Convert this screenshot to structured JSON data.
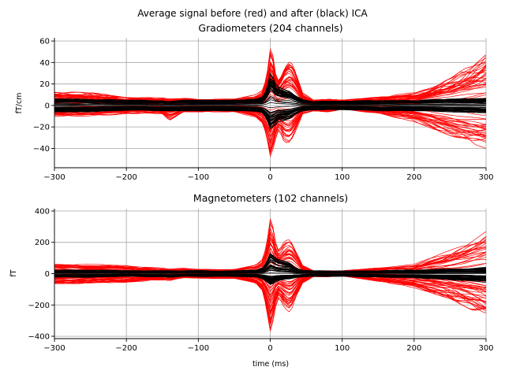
{
  "figure": {
    "suptitle": "Average signal before (red) and after (black) ICA",
    "colors": {
      "before": "#ff0000",
      "after": "#000000",
      "grid": "#b0b0b0"
    }
  },
  "chart_data": [
    {
      "type": "line",
      "title": "Gradiometers (204 channels)",
      "xlabel": "",
      "ylabel": "fT/cm",
      "xlim": [
        -300,
        300
      ],
      "ylim": [
        -58,
        63
      ],
      "xticks": [
        -300,
        -200,
        -100,
        0,
        100,
        200,
        300
      ],
      "xtick_labels": [
        "−300",
        "−200",
        "−100",
        "0",
        "100",
        "200",
        "300"
      ],
      "yticks": [
        -40,
        -20,
        0,
        20,
        40,
        60
      ],
      "ytick_labels": [
        "−40",
        "−20",
        "0",
        "20",
        "40",
        "60"
      ],
      "grid": true,
      "channels": 204,
      "series": [
        {
          "color": "#ff0000",
          "x": [
            -300,
            -250,
            -200,
            -150,
            -140,
            -120,
            -100,
            -50,
            -20,
            -10,
            -5,
            0,
            3,
            8,
            12,
            20,
            28,
            35,
            45,
            60,
            80,
            100,
            150,
            200,
            250,
            300
          ],
          "upper": [
            13,
            12,
            8,
            7,
            6,
            7,
            6,
            6,
            10,
            15,
            30,
            58,
            55,
            30,
            25,
            40,
            46,
            35,
            12,
            5,
            6,
            5,
            8,
            12,
            25,
            48
          ],
          "lower": [
            -10,
            -10,
            -8,
            -8,
            -14,
            -6,
            -6,
            -6,
            -12,
            -20,
            -35,
            -52,
            -45,
            -30,
            -22,
            -35,
            -36,
            -25,
            -8,
            -5,
            -6,
            -4,
            -8,
            -15,
            -28,
            -40
          ]
        },
        {
          "color": "#000000",
          "x": [
            -300,
            -250,
            -200,
            -150,
            -140,
            -120,
            -100,
            -50,
            -20,
            -10,
            -5,
            0,
            3,
            8,
            12,
            20,
            28,
            35,
            45,
            60,
            80,
            100,
            150,
            200,
            250,
            300
          ],
          "upper": [
            6,
            6,
            5,
            5,
            4,
            5,
            5,
            5,
            6,
            8,
            15,
            30,
            28,
            20,
            18,
            16,
            14,
            10,
            6,
            4,
            4,
            4,
            5,
            5,
            6,
            7
          ],
          "lower": [
            -6,
            -6,
            -5,
            -5,
            -5,
            -5,
            -5,
            -5,
            -6,
            -8,
            -15,
            -24,
            -22,
            -18,
            -15,
            -14,
            -12,
            -8,
            -5,
            -4,
            -4,
            -4,
            -5,
            -5,
            -6,
            -7
          ]
        }
      ]
    },
    {
      "type": "line",
      "title": "Magnetometers (102 channels)",
      "xlabel": "time (ms)",
      "ylabel": "fT",
      "xlim": [
        -300,
        300
      ],
      "ylim": [
        -415,
        415
      ],
      "xticks": [
        -300,
        -200,
        -100,
        0,
        100,
        200,
        300
      ],
      "xtick_labels": [
        "−300",
        "−200",
        "−100",
        "0",
        "100",
        "200",
        "300"
      ],
      "yticks": [
        -400,
        -200,
        0,
        200,
        400
      ],
      "ytick_labels": [
        "−400",
        "−200",
        "0",
        "200",
        "400"
      ],
      "grid": true,
      "channels": 102,
      "series": [
        {
          "color": "#ff0000",
          "x": [
            -300,
            -250,
            -200,
            -150,
            -140,
            -120,
            -100,
            -50,
            -20,
            -10,
            -5,
            0,
            3,
            8,
            12,
            20,
            28,
            35,
            45,
            60,
            80,
            100,
            150,
            200,
            250,
            300
          ],
          "upper": [
            65,
            60,
            60,
            35,
            30,
            35,
            30,
            30,
            60,
            100,
            200,
            370,
            340,
            200,
            150,
            220,
            240,
            170,
            60,
            20,
            20,
            20,
            40,
            60,
            150,
            270
          ],
          "lower": [
            -70,
            -60,
            -55,
            -40,
            -45,
            -30,
            -30,
            -30,
            -60,
            -120,
            -250,
            -380,
            -330,
            -200,
            -150,
            -220,
            -250,
            -160,
            -60,
            -20,
            -20,
            -15,
            -50,
            -90,
            -160,
            -280
          ]
        },
        {
          "color": "#000000",
          "x": [
            -300,
            -250,
            -200,
            -150,
            -140,
            -120,
            -100,
            -50,
            -20,
            -10,
            -5,
            0,
            3,
            8,
            12,
            20,
            28,
            35,
            45,
            60,
            80,
            100,
            150,
            200,
            250,
            300
          ],
          "upper": [
            25,
            25,
            20,
            20,
            20,
            20,
            20,
            20,
            25,
            40,
            80,
            140,
            130,
            100,
            90,
            80,
            70,
            40,
            25,
            20,
            20,
            20,
            20,
            25,
            35,
            40
          ],
          "lower": [
            -25,
            -25,
            -20,
            -25,
            -30,
            -20,
            -20,
            -20,
            -25,
            -40,
            -60,
            -80,
            -75,
            -60,
            -50,
            -45,
            -40,
            -30,
            -25,
            -20,
            -20,
            -20,
            -25,
            -30,
            -45,
            -60
          ]
        }
      ]
    }
  ]
}
